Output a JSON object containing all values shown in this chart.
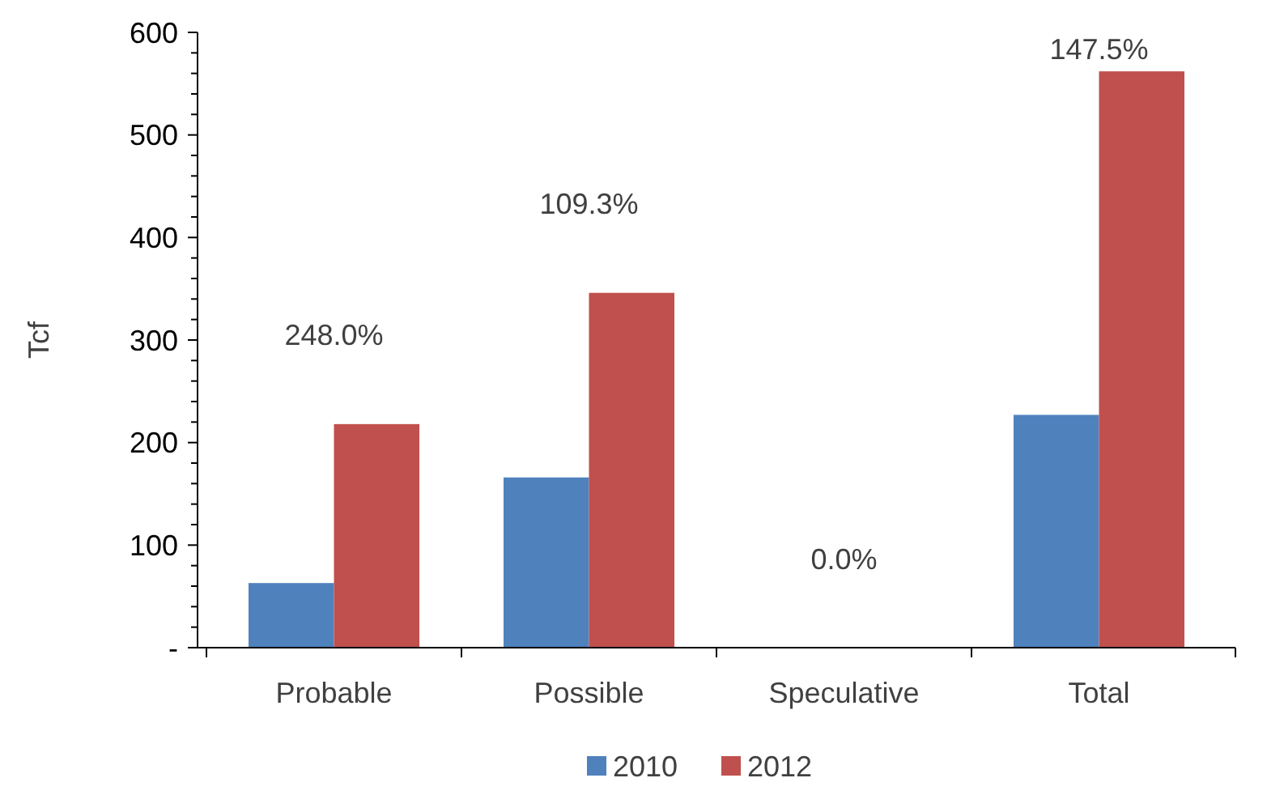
{
  "chart_data": {
    "type": "bar",
    "ylabel": "Tcf",
    "categories": [
      "Probable",
      "Possible",
      "Speculative",
      "Total"
    ],
    "series": [
      {
        "name": "2010",
        "color": "#4f81bd",
        "values": [
          63,
          166,
          0,
          227
        ]
      },
      {
        "name": "2012",
        "color": "#c0504d",
        "values": [
          218,
          346,
          0,
          562
        ]
      }
    ],
    "ylim": [
      0,
      600
    ],
    "yticks": [
      {
        "value": 0,
        "label": "-"
      },
      {
        "value": 20,
        "label": null
      },
      {
        "value": 40,
        "label": null
      },
      {
        "value": 60,
        "label": null
      },
      {
        "value": 80,
        "label": null
      },
      100,
      {
        "value": 120,
        "label": null
      },
      {
        "value": 140,
        "label": null
      },
      {
        "value": 160,
        "label": null
      },
      {
        "value": 180,
        "label": null
      },
      200,
      {
        "value": 220,
        "label": null
      },
      {
        "value": 240,
        "label": null
      },
      {
        "value": 260,
        "label": null
      },
      {
        "value": 280,
        "label": null
      },
      300,
      {
        "value": 320,
        "label": null
      },
      {
        "value": 340,
        "label": null
      },
      {
        "value": 360,
        "label": null
      },
      {
        "value": 380,
        "label": null
      },
      400,
      {
        "value": 420,
        "label": null
      },
      {
        "value": 440,
        "label": null
      },
      {
        "value": 460,
        "label": null
      },
      {
        "value": 480,
        "label": null
      },
      500,
      {
        "value": 520,
        "label": null
      },
      {
        "value": 540,
        "label": null
      },
      {
        "value": 560,
        "label": null
      },
      {
        "value": 580,
        "label": null
      },
      600
    ],
    "annotations": [
      "248.0%",
      "109.3%",
      "0.0%",
      "147.5%"
    ],
    "grid": false,
    "legend": "bottom"
  }
}
